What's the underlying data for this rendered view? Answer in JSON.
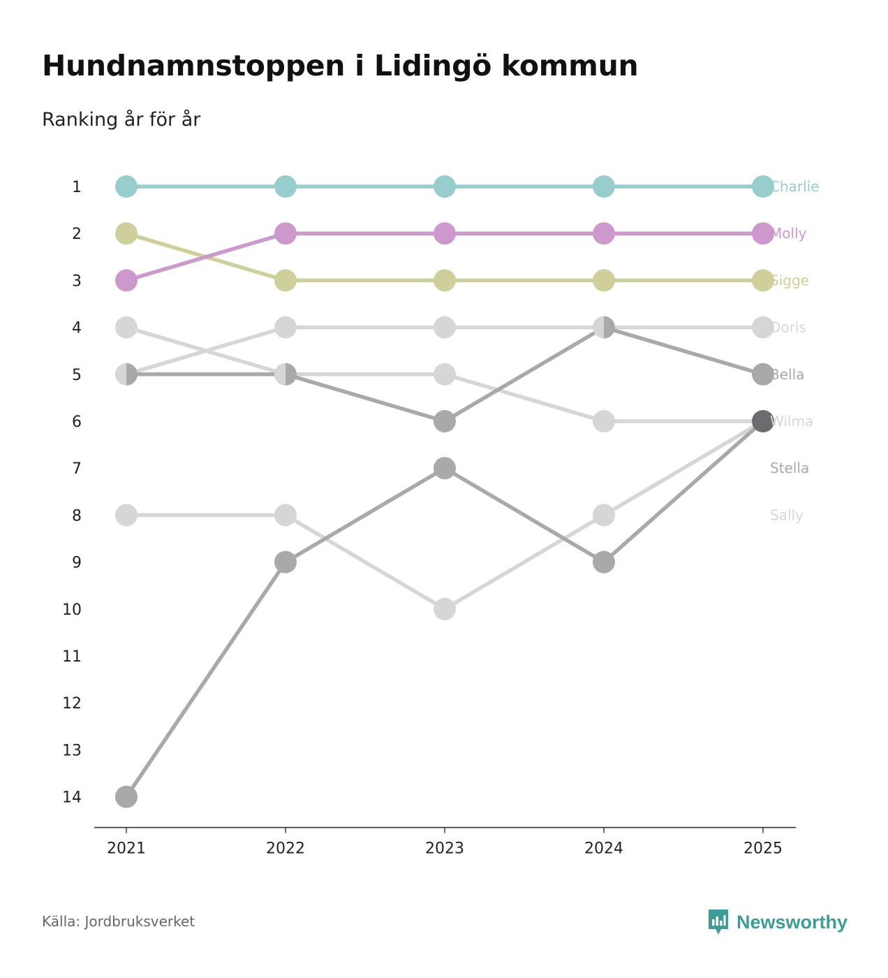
{
  "title": "Hundnamnstoppen i Lidingö kommun",
  "subtitle": "Ranking år för år",
  "source": "Källa: Jordbruksverket",
  "brand": {
    "name": "Newsworthy",
    "color": "#3d9c97"
  },
  "chart_data": {
    "type": "line",
    "subtype": "bump",
    "x": [
      "2021",
      "2022",
      "2023",
      "2024",
      "2025"
    ],
    "y_ticks": [
      "1",
      "2",
      "3",
      "4",
      "5",
      "6",
      "7",
      "8",
      "9",
      "10",
      "11",
      "12",
      "13",
      "14"
    ],
    "y_reversed": true,
    "ylim": [
      1,
      14
    ],
    "label_rank_override": {
      "Stella": 7,
      "Sally": 8
    },
    "series": [
      {
        "name": "Sally",
        "color": "#d6d6d6",
        "values": [
          8,
          8,
          10,
          8,
          6
        ]
      },
      {
        "name": "Stella",
        "color": "#a9a9a9",
        "values": [
          14,
          9,
          7,
          9,
          6
        ]
      },
      {
        "name": "Wilma",
        "color": "#d6d6d6",
        "values": [
          4,
          5,
          5,
          6,
          6
        ]
      },
      {
        "name": "Doris",
        "color": "#d6d6d6",
        "values": [
          5,
          4,
          4,
          4,
          4
        ]
      },
      {
        "name": "Bella",
        "color": "#a9a9a9",
        "values": [
          5,
          5,
          6,
          4,
          5
        ]
      },
      {
        "name": "Sigge",
        "color": "#cfcf9c",
        "values": [
          2,
          3,
          3,
          3,
          3
        ]
      },
      {
        "name": "Molly",
        "color": "#cd98cc",
        "values": [
          3,
          2,
          2,
          2,
          2
        ]
      },
      {
        "name": "Charlie",
        "color": "#97cdcc",
        "values": [
          1,
          1,
          1,
          1,
          1
        ]
      }
    ],
    "overlap_point_color": "#6b6b70"
  }
}
